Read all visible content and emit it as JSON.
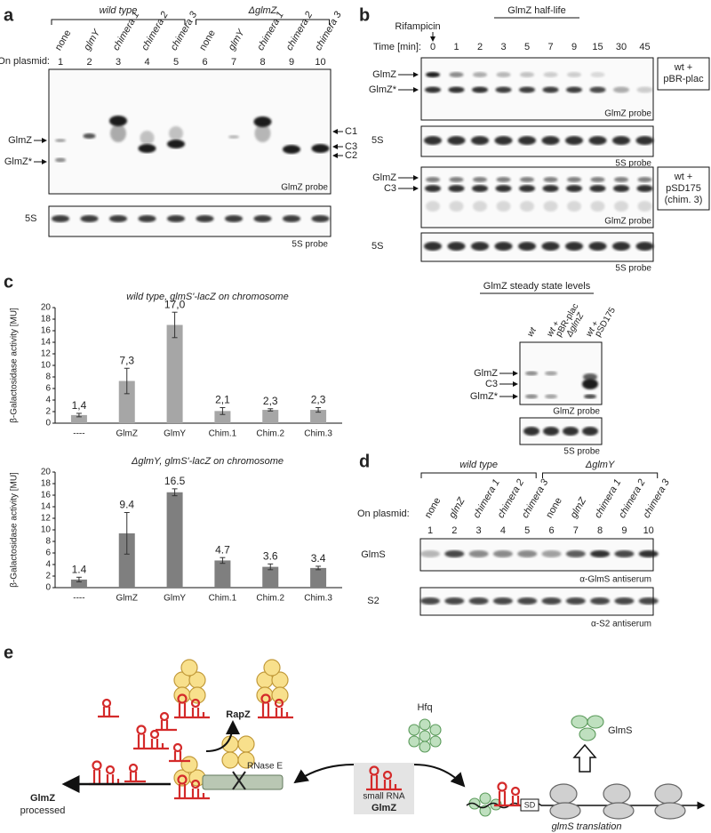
{
  "panel_a": {
    "label": "a",
    "groups": [
      "wild type",
      "ΔglmZ"
    ],
    "plasmid_label": "On plasmid:",
    "lanes": [
      "none",
      "glmY",
      "chimera 1",
      "chimera 2",
      "chimera 3",
      "none",
      "glmY",
      "chimera 1",
      "chimera 2",
      "chimera 3"
    ],
    "lane_numbers": [
      1,
      2,
      3,
      4,
      5,
      6,
      7,
      8,
      9,
      10
    ],
    "bands_left": [
      "GlmZ",
      "GlmZ*"
    ],
    "bands_right": [
      "C1",
      "C3",
      "C2"
    ],
    "probe": "GlmZ probe",
    "loading": "5S",
    "loading_probe": "5S probe"
  },
  "panel_b": {
    "label": "b",
    "title": "GlmZ half-life",
    "treatment": "Rifampicin",
    "time_label": "Time [min]:",
    "times": [
      0,
      1,
      2,
      3,
      5,
      7,
      9,
      15,
      30,
      45
    ],
    "blot_1": {
      "bands": [
        "GlmZ",
        "GlmZ*"
      ],
      "probe": "GlmZ probe",
      "strain": [
        "wt +",
        "pBR-plac"
      ]
    },
    "loading_1": {
      "label": "5S",
      "probe": "5S probe"
    },
    "blot_2": {
      "bands": [
        "GlmZ",
        "C3"
      ],
      "probe": "GlmZ probe",
      "strain": [
        "wt +",
        "pSD175",
        "(chim. 3)"
      ]
    },
    "loading_2": {
      "label": "5S",
      "probe": "5S probe"
    },
    "steady_state": {
      "title": "GlmZ steady state levels",
      "lanes": [
        [
          "wt"
        ],
        [
          "wt +",
          "pBR-plac"
        ],
        [
          "ΔglmZ"
        ],
        [
          "wt +",
          "pSD175"
        ]
      ],
      "bands": [
        "GlmZ",
        "C3",
        "GlmZ*"
      ],
      "probe": "GlmZ probe",
      "loading_probe": "5S probe"
    }
  },
  "panel_c_label": "c",
  "chart_data": [
    {
      "type": "bar",
      "title": "wild type, glmS'-lacZ on chromosome",
      "y_label": "β-Galactosidase activity [MU]",
      "categories": [
        "----",
        "GlmZ",
        "GlmY",
        "Chim.1",
        "Chim.2",
        "Chim.3"
      ],
      "values": [
        1.4,
        7.3,
        17.0,
        2.1,
        2.3,
        2.3
      ],
      "value_labels": [
        "1,4",
        "7,3",
        "17,0",
        "2,1",
        "2,3",
        "2,3"
      ],
      "errors": [
        0.3,
        2.2,
        2.2,
        0.6,
        0.2,
        0.4
      ],
      "color": "#a6a6a6",
      "ylim": [
        0,
        20
      ],
      "yticks": [
        0,
        2,
        4,
        6,
        8,
        10,
        12,
        14,
        16,
        18,
        20
      ]
    },
    {
      "type": "bar",
      "title": "ΔglmY, glmS'-lacZ on chromosome",
      "y_label": "β-Galactosidase activity [MU]",
      "categories": [
        "----",
        "GlmZ",
        "GlmY",
        "Chim.1",
        "Chim.2",
        "Chim.3"
      ],
      "values": [
        1.4,
        9.4,
        16.5,
        4.7,
        3.6,
        3.4
      ],
      "errors": [
        0.4,
        3.6,
        0.6,
        0.5,
        0.5,
        0.3
      ],
      "color": "#7f7f7f",
      "ylim": [
        0,
        20
      ],
      "yticks": [
        0,
        2,
        4,
        6,
        8,
        10,
        12,
        14,
        16,
        18,
        20
      ]
    }
  ],
  "panel_d": {
    "label": "d",
    "groups": [
      "wild type",
      "ΔglmY"
    ],
    "plasmid_label": "On plasmid:",
    "lanes": [
      "none",
      "glmZ",
      "chimera 1",
      "chimera 2",
      "chimera 3",
      "none",
      "glmZ",
      "chimera 1",
      "chimera 2",
      "chimera 3"
    ],
    "lane_numbers": [
      1,
      2,
      3,
      4,
      5,
      6,
      7,
      8,
      9,
      10
    ],
    "blot_1": {
      "label": "GlmS",
      "probe": "α-GlmS antiserum"
    },
    "blot_2": {
      "label": "S2",
      "probe": "α-S2 antiserum"
    }
  },
  "panel_e": {
    "label": "e",
    "rapz": "RapZ",
    "hfq": "Hfq",
    "glms": "GlmS",
    "rnase": "RNase E",
    "processed": [
      "GlmZ",
      "processed"
    ],
    "srna": [
      "small RNA",
      "GlmZ"
    ],
    "sd": "SD",
    "translation": "glmS translation"
  }
}
